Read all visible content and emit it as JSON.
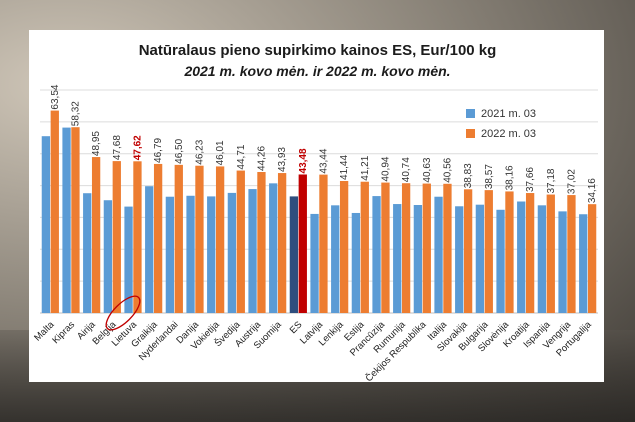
{
  "chart_data": {
    "type": "bar",
    "title": "Natūralaus pieno supirkimo kainos ES, Eur/100 kg",
    "subtitle": "2021 m. kovo mėn. ir 2022 m. kovo mėn.",
    "categories": [
      "Malta",
      "Kipras",
      "Airija",
      "Belgija",
      "Lietuva",
      "Graikija",
      "Nyderlandai",
      "Danija",
      "Vokietija",
      "Švedija",
      "Austrija",
      "Suomija",
      "ES",
      "Latvija",
      "Lenkija",
      "Estija",
      "Prancūzija",
      "Rumunija",
      "Čekijos Respublika",
      "Italija",
      "Slovakija",
      "Bulgarija",
      "Slovėnija",
      "Kroatija",
      "Ispanija",
      "Vengrija",
      "Portugalija"
    ],
    "value_labels": [
      "63,54",
      "58,32",
      "48,95",
      "47,68",
      "47,62",
      "46,79",
      "46,50",
      "46,23",
      "46,01",
      "44,71",
      "44,26",
      "43,93",
      "43,48",
      "43,44",
      "41,44",
      "41,21",
      "40,94",
      "40,74",
      "40,63",
      "40,56",
      "38,83",
      "38,57",
      "38,16",
      "37,66",
      "37,18",
      "37,02",
      "34,16"
    ],
    "series": [
      {
        "name": "2021 m. 03",
        "color": "#5b9bd5",
        "values": [
          55.5,
          58.2,
          37.6,
          35.4,
          33.4,
          39.8,
          36.5,
          36.8,
          36.6,
          37.7,
          38.9,
          40.7,
          36.6,
          31.1,
          33.8,
          31.4,
          36.7,
          34.2,
          33.9,
          36.5,
          33.5,
          34.0,
          32.4,
          35.0,
          33.8,
          31.9,
          31.0
        ]
      },
      {
        "name": "2022 m. 03",
        "color": "#ed7d31",
        "values": [
          63.54,
          58.32,
          48.95,
          47.68,
          47.62,
          46.79,
          46.5,
          46.23,
          46.01,
          44.71,
          44.26,
          43.93,
          43.48,
          43.44,
          41.44,
          41.21,
          40.94,
          40.74,
          40.63,
          40.56,
          38.83,
          38.57,
          38.16,
          37.66,
          37.18,
          37.02,
          34.16
        ]
      }
    ],
    "highlight": {
      "category": "ES",
      "color_2021": "#2e4e7e",
      "color_2022": "#c00000",
      "label_color": "#c00000"
    },
    "highlight_label": {
      "category": "Lietuva",
      "label_color": "#c00000",
      "circled": true
    },
    "grid": true,
    "legend": "top-right",
    "ylim": [
      0,
      70
    ]
  }
}
